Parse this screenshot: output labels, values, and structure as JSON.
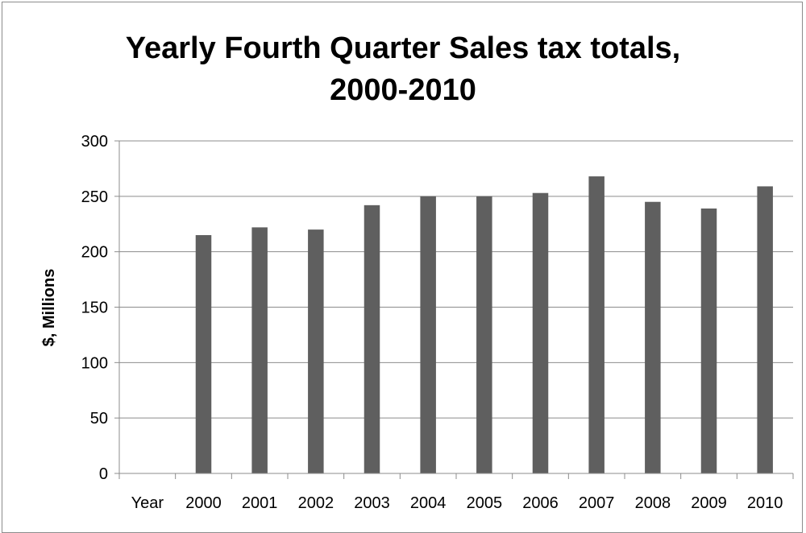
{
  "chart_data": {
    "type": "bar",
    "title_lines": [
      "Yearly Fourth Quarter Sales tax totals,",
      "2000-2010"
    ],
    "xlabel": "",
    "ylabel": "$, Millions",
    "ylim": [
      0,
      300
    ],
    "yticks": [
      0,
      50,
      100,
      150,
      200,
      250,
      300
    ],
    "grid": true,
    "legend": "none",
    "bar_color": "#5f5f5f",
    "categories": [
      "Year",
      "2000",
      "2001",
      "2002",
      "2003",
      "2004",
      "2005",
      "2006",
      "2007",
      "2008",
      "2009",
      "2010"
    ],
    "values": [
      null,
      215,
      222,
      220,
      242,
      250,
      250,
      253,
      268,
      245,
      239,
      259
    ]
  }
}
